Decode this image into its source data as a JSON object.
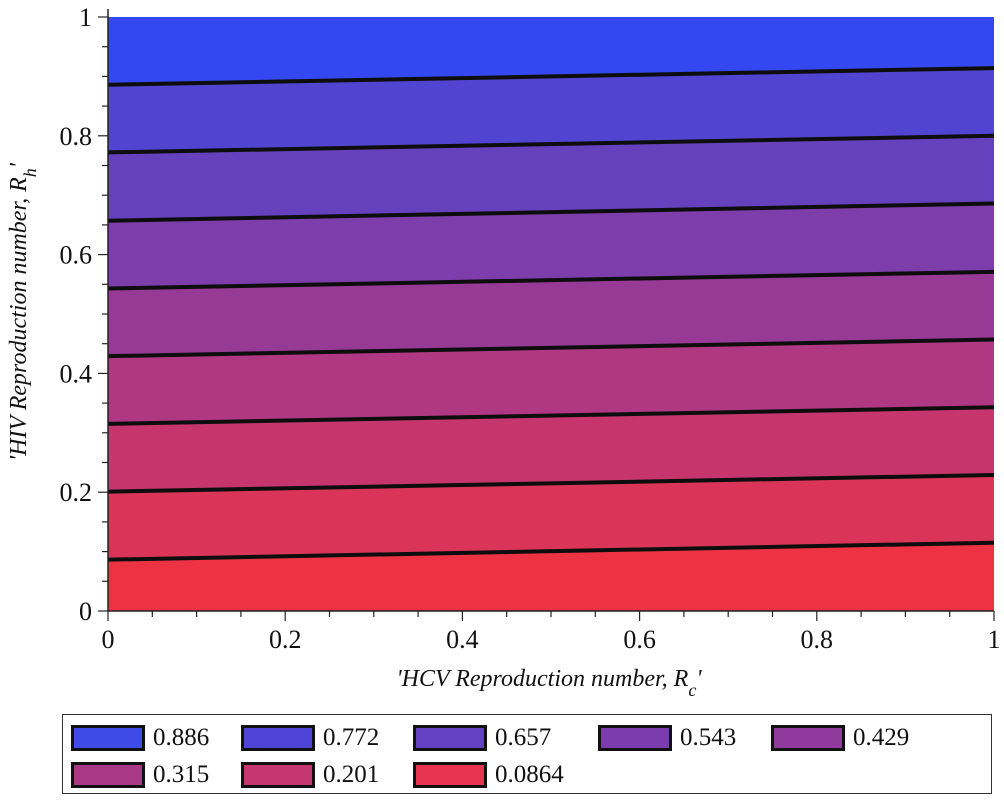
{
  "chart_data": {
    "type": "contour",
    "xlabel_prefix": "'HCV Reproduction number, R",
    "xlabel_sub": "c",
    "xlabel_suffix": "'",
    "ylabel_prefix": "'HIV Reproduction number, R",
    "ylabel_sub": "h",
    "ylabel_suffix": "'",
    "xlim": [
      0,
      1
    ],
    "ylim": [
      0,
      1
    ],
    "x_ticks": [
      0,
      0.2,
      0.4,
      0.6,
      0.8,
      1
    ],
    "x_tick_labels": [
      "0",
      "0.2",
      "0.4",
      "0.6",
      "0.8",
      "1"
    ],
    "y_ticks": [
      0,
      0.2,
      0.4,
      0.6,
      0.8,
      1
    ],
    "y_tick_labels": [
      "0",
      "0.2",
      "0.4",
      "0.6",
      "0.8",
      "1"
    ],
    "contours": [
      {
        "level": 0.886,
        "label": "0.886",
        "y_at_x0": 0.886,
        "y_at_x1": 0.914,
        "color": "#3E4BE6"
      },
      {
        "level": 0.772,
        "label": "0.772",
        "y_at_x0": 0.772,
        "y_at_x1": 0.8,
        "color": "#4E45D6"
      },
      {
        "level": 0.657,
        "label": "0.657",
        "y_at_x0": 0.657,
        "y_at_x1": 0.686,
        "color": "#6341C2"
      },
      {
        "level": 0.543,
        "label": "0.543",
        "y_at_x0": 0.543,
        "y_at_x1": 0.571,
        "color": "#7B3DAE"
      },
      {
        "level": 0.429,
        "label": "0.429",
        "y_at_x0": 0.429,
        "y_at_x1": 0.457,
        "color": "#8F3A9C"
      },
      {
        "level": 0.315,
        "label": "0.315",
        "y_at_x0": 0.315,
        "y_at_x1": 0.343,
        "color": "#A93886"
      },
      {
        "level": 0.201,
        "label": "0.201",
        "y_at_x0": 0.201,
        "y_at_x1": 0.229,
        "color": "#C63671"
      },
      {
        "level": 0.0864,
        "label": "0.0864",
        "y_at_x0": 0.0864,
        "y_at_x1": 0.115,
        "color": "#E6344F"
      }
    ],
    "band_colors": [
      "#ED3244",
      "#DA3458",
      "#C6366C",
      "#B03882",
      "#963A96",
      "#7D3DAA",
      "#6641BD",
      "#5144D0",
      "#3448F2"
    ],
    "legend": {
      "placement": "bottom",
      "columns": 5
    }
  }
}
